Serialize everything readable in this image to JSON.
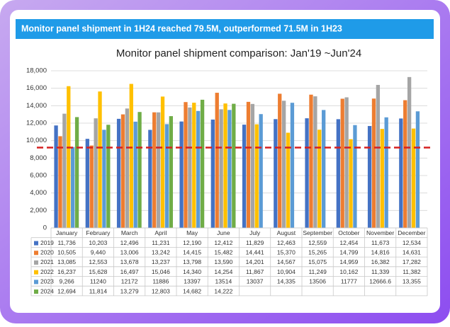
{
  "header": {
    "title": "Monitor panel shipment in 1H24 reached 79.5M, outperformed 71.5M in 1H23"
  },
  "chart_data": {
    "type": "bar",
    "title": "Monitor panel shipment comparison: Jan'19 ~Jun'24",
    "categories": [
      "January",
      "February",
      "March",
      "April",
      "May",
      "June",
      "July",
      "August",
      "September",
      "October",
      "November",
      "December"
    ],
    "series": [
      {
        "name": "2019",
        "color": "#4472c4",
        "values": [
          11736,
          10203,
          12496,
          11231,
          12190,
          12412,
          11829,
          12463,
          12559,
          12454,
          11673,
          12534
        ],
        "value_labels": [
          "11,736",
          "10,203",
          "12,496",
          "11,231",
          "12,190",
          "12,412",
          "11,829",
          "12,463",
          "12,559",
          "12,454",
          "11,673",
          "12,534"
        ]
      },
      {
        "name": "2020",
        "color": "#ed7d31",
        "values": [
          10505,
          9440,
          13006,
          13242,
          14415,
          15482,
          14441,
          15370,
          15265,
          14799,
          14816,
          14631
        ],
        "value_labels": [
          "10,505",
          "9,440",
          "13,006",
          "13,242",
          "14,415",
          "15,482",
          "14,441",
          "15,370",
          "15,265",
          "14,799",
          "14,816",
          "14,631"
        ]
      },
      {
        "name": "2021",
        "color": "#a5a5a5",
        "values": [
          13085,
          12553,
          13678,
          13237,
          13798,
          13590,
          14201,
          14567,
          15075,
          14959,
          16382,
          17282
        ],
        "value_labels": [
          "13,085",
          "12,553",
          "13,678",
          "13,237",
          "13,798",
          "13,590",
          "14,201",
          "14,567",
          "15,075",
          "14,959",
          "16,382",
          "17,282"
        ]
      },
      {
        "name": "2022",
        "color": "#ffc000",
        "values": [
          16237,
          15628,
          16497,
          15046,
          14340,
          14254,
          11867,
          10904,
          11249,
          10162,
          11339,
          11382
        ],
        "value_labels": [
          "16,237",
          "15,628",
          "16,497",
          "15,046",
          "14,340",
          "14,254",
          "11,867",
          "10,904",
          "11,249",
          "10,162",
          "11,339",
          "11,382"
        ]
      },
      {
        "name": "2023",
        "color": "#5b9bd5",
        "values": [
          9266,
          11240,
          12172,
          11886,
          13397,
          13514,
          13037,
          14335,
          13506,
          11777,
          12666.6,
          13355
        ],
        "value_labels": [
          "9,266",
          "11240",
          "12172",
          "11886",
          "13397",
          "13514",
          "13037",
          "14,335",
          "13506",
          "11777",
          "12666.6",
          "13,355"
        ]
      },
      {
        "name": "2024",
        "color": "#70ad47",
        "values": [
          12694,
          11814,
          13279,
          12803,
          14682,
          14222,
          null,
          null,
          null,
          null,
          null,
          null
        ],
        "value_labels": [
          "12,694",
          "11,814",
          "13,279",
          "12,803",
          "14,682",
          "14,222",
          null,
          null,
          null,
          null,
          null,
          null
        ]
      }
    ],
    "ylim": [
      0,
      18000
    ],
    "yticks": [
      0,
      {
        "value": 2000,
        "label": "2,000"
      },
      {
        "value": 4000,
        "label": "4,000"
      },
      {
        "value": 6000,
        "label": "6,000"
      },
      {
        "value": 8000,
        "label": "8,000"
      },
      {
        "value": 10000,
        "label": "10,000"
      },
      {
        "value": 12000,
        "label": "12,000"
      },
      {
        "value": 14000,
        "label": "14,000"
      },
      {
        "value": 16000,
        "label": "16,000"
      },
      {
        "value": 18000,
        "label": "18,000"
      }
    ],
    "grid": true,
    "reference_line": {
      "value": 9200,
      "color": "#d62020"
    }
  }
}
